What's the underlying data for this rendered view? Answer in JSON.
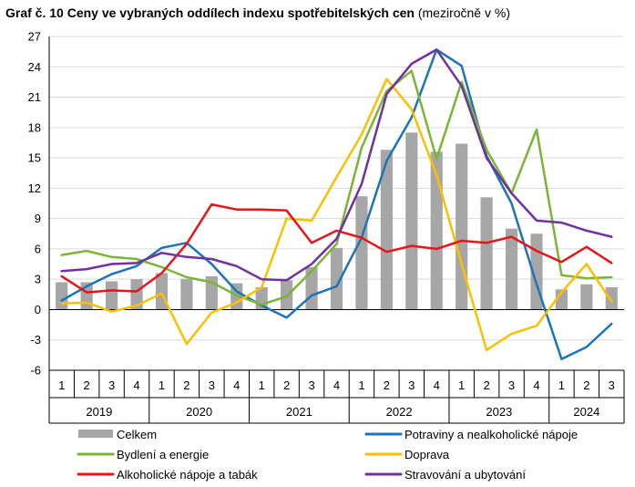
{
  "chart_data": {
    "type": "bar+line",
    "title": "Graf č. 10 Ceny ve vybraných oddílech indexu spotřebitelských cen",
    "subtitle": "(meziročně v %)",
    "ylim": [
      -6,
      27
    ],
    "yticks": [
      "27",
      "24",
      "21",
      "18",
      "15",
      "12",
      "9",
      "6",
      "3",
      "0",
      "-3",
      "-6"
    ],
    "ytick_values": [
      27,
      24,
      21,
      18,
      15,
      12,
      9,
      6,
      3,
      0,
      -3,
      -6
    ],
    "quarters": [
      "1",
      "2",
      "3",
      "4",
      "1",
      "2",
      "3",
      "4",
      "1",
      "2",
      "3",
      "4",
      "1",
      "2",
      "3",
      "4",
      "1",
      "2",
      "3",
      "4",
      "1",
      "2",
      "3"
    ],
    "years": [
      {
        "label": "2019",
        "count": 4
      },
      {
        "label": "2020",
        "count": 4
      },
      {
        "label": "2021",
        "count": 4
      },
      {
        "label": "2022",
        "count": 4
      },
      {
        "label": "2023",
        "count": 4
      },
      {
        "label": "2024",
        "count": 3
      }
    ],
    "grid": true,
    "legend_position": "bottom",
    "bars": {
      "name": "Celkem",
      "color": "#a6a6a6",
      "values": [
        2.7,
        2.7,
        2.8,
        3.0,
        3.6,
        3.0,
        3.3,
        2.6,
        2.2,
        2.9,
        4.2,
        6.1,
        11.2,
        15.8,
        17.5,
        15.6,
        16.4,
        11.1,
        8.0,
        7.5,
        2.0,
        2.5,
        2.2
      ]
    },
    "series": [
      {
        "name": "Potraviny a nealkoholické nápoje",
        "color": "#1a75b8",
        "values": [
          0.9,
          2.3,
          3.5,
          4.3,
          6.1,
          6.6,
          4.5,
          1.8,
          0.4,
          -0.8,
          1.4,
          2.3,
          7.1,
          14.7,
          19.0,
          25.7,
          24.1,
          15.2,
          10.5,
          2.5,
          -4.9,
          -3.7,
          -1.4
        ]
      },
      {
        "name": "Bydlení a energie",
        "color": "#7ab536",
        "values": [
          5.4,
          5.8,
          5.2,
          5.0,
          4.2,
          3.2,
          2.7,
          1.4,
          0.5,
          1.3,
          3.8,
          6.5,
          16.0,
          21.6,
          23.6,
          14.9,
          22.5,
          15.8,
          11.5,
          17.8,
          3.4,
          3.1,
          3.2
        ]
      },
      {
        "name": "Doprava",
        "color": "#fcc000",
        "values": [
          0.6,
          0.7,
          -0.2,
          0.4,
          1.6,
          -3.4,
          -0.3,
          0.7,
          2.2,
          9.0,
          8.8,
          13.1,
          17.3,
          22.8,
          19.8,
          13.3,
          4.5,
          -4.0,
          -2.4,
          -1.6,
          1.7,
          4.5,
          0.8
        ]
      },
      {
        "name": "Alkoholické nápoje a tabák",
        "color": "#e8141b",
        "values": [
          3.3,
          1.7,
          1.9,
          1.8,
          3.6,
          6.5,
          10.4,
          9.9,
          9.9,
          9.8,
          6.6,
          7.8,
          7.1,
          5.7,
          6.3,
          6.0,
          6.8,
          6.6,
          7.2,
          5.8,
          4.7,
          6.2,
          4.6
        ]
      },
      {
        "name": "Stravování a ubytování",
        "color": "#7030a0",
        "values": [
          3.8,
          4.0,
          4.5,
          4.6,
          5.6,
          5.2,
          5.0,
          4.3,
          3.0,
          2.9,
          4.5,
          7.0,
          12.4,
          21.3,
          24.3,
          25.7,
          22.1,
          15.0,
          11.5,
          8.8,
          8.6,
          7.8,
          7.2
        ]
      }
    ],
    "legend": [
      {
        "name": "Celkem",
        "type": "bar",
        "color": "#a6a6a6"
      },
      {
        "name": "Potraviny a nealkoholické nápoje",
        "type": "line",
        "color": "#1a75b8"
      },
      {
        "name": "Bydlení a energie",
        "type": "line",
        "color": "#7ab536"
      },
      {
        "name": "Doprava",
        "type": "line",
        "color": "#fcc000"
      },
      {
        "name": "Alkoholické nápoje a tabák",
        "type": "line",
        "color": "#e8141b"
      },
      {
        "name": "Stravování a ubytování",
        "type": "line",
        "color": "#7030a0"
      }
    ]
  }
}
